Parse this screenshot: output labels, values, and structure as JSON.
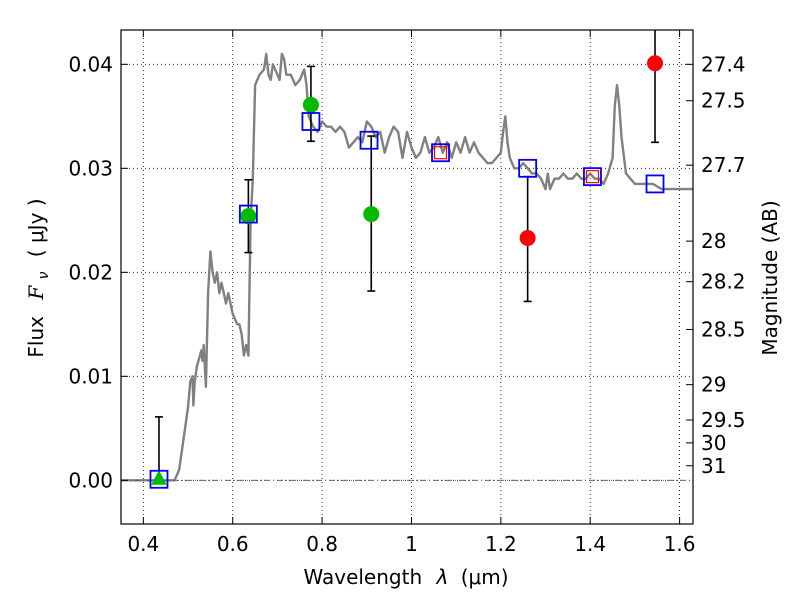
{
  "chart_data": {
    "type": "scatter",
    "xlabel_text": "Wavelength",
    "xlabel_lambda": "λ",
    "xlabel_unit": "(μm)",
    "ylabel_text": "Flux",
    "ylabel_symbol": "F",
    "ylabel_sub": "ν",
    "ylabel_unit": "( μJy )",
    "y2label": "Magnitude (AB)",
    "xlim": [
      0.35,
      1.63
    ],
    "ylim": [
      -0.0042,
      0.0433
    ],
    "grid": true,
    "x_ticks": [
      0.4,
      0.6,
      0.8,
      1.0,
      1.2,
      1.4,
      1.6
    ],
    "x_tick_labels": [
      "0.4",
      "0.6",
      "0.8",
      "1",
      "1.2",
      "1.4",
      "1.6"
    ],
    "y_ticks": [
      0.0,
      0.01,
      0.02,
      0.03,
      0.04
    ],
    "y_tick_labels": [
      "0.00",
      "0.01",
      "0.02",
      "0.03",
      "0.04"
    ],
    "mag_ticks": [
      {
        "label": "27.4",
        "y": 0.04
      },
      {
        "label": "27.5",
        "y": 0.0365
      },
      {
        "label": "27.7",
        "y": 0.0303
      },
      {
        "label": "28",
        "y": 0.023
      },
      {
        "label": "28.2",
        "y": 0.0191
      },
      {
        "label": "28.5",
        "y": 0.0145
      },
      {
        "label": "29",
        "y": 0.0092
      },
      {
        "label": "29.5",
        "y": 0.0058
      },
      {
        "label": "30",
        "y": 0.0036
      },
      {
        "label": "31",
        "y": 0.0014
      }
    ],
    "sed_model": {
      "color": "#808080",
      "points": [
        [
          0.35,
          0.0
        ],
        [
          0.45,
          0.0
        ],
        [
          0.47,
          0.0
        ],
        [
          0.48,
          0.001
        ],
        [
          0.49,
          0.004
        ],
        [
          0.5,
          0.007
        ],
        [
          0.505,
          0.0095
        ],
        [
          0.51,
          0.01
        ],
        [
          0.512,
          0.0072
        ],
        [
          0.515,
          0.0095
        ],
        [
          0.52,
          0.011
        ],
        [
          0.53,
          0.0125
        ],
        [
          0.532,
          0.0115
        ],
        [
          0.535,
          0.013
        ],
        [
          0.54,
          0.009
        ],
        [
          0.545,
          0.018
        ],
        [
          0.55,
          0.022
        ],
        [
          0.555,
          0.02
        ],
        [
          0.56,
          0.019
        ],
        [
          0.565,
          0.02
        ],
        [
          0.57,
          0.018
        ],
        [
          0.575,
          0.019
        ],
        [
          0.58,
          0.018
        ],
        [
          0.585,
          0.017
        ],
        [
          0.59,
          0.018
        ],
        [
          0.6,
          0.016
        ],
        [
          0.61,
          0.015
        ],
        [
          0.615,
          0.015
        ],
        [
          0.62,
          0.014
        ],
        [
          0.625,
          0.012
        ],
        [
          0.63,
          0.013
        ],
        [
          0.635,
          0.012
        ],
        [
          0.64,
          0.025
        ],
        [
          0.645,
          0.029
        ],
        [
          0.65,
          0.038
        ],
        [
          0.66,
          0.039
        ],
        [
          0.67,
          0.0395
        ],
        [
          0.675,
          0.041
        ],
        [
          0.68,
          0.039
        ],
        [
          0.685,
          0.0385
        ],
        [
          0.69,
          0.04
        ],
        [
          0.7,
          0.039
        ],
        [
          0.705,
          0.0385
        ],
        [
          0.71,
          0.041
        ],
        [
          0.715,
          0.0405
        ],
        [
          0.72,
          0.039
        ],
        [
          0.73,
          0.039
        ],
        [
          0.74,
          0.038
        ],
        [
          0.75,
          0.0385
        ],
        [
          0.76,
          0.0395
        ],
        [
          0.765,
          0.038
        ],
        [
          0.77,
          0.035
        ],
        [
          0.78,
          0.034
        ],
        [
          0.79,
          0.0335
        ],
        [
          0.8,
          0.0345
        ],
        [
          0.81,
          0.034
        ],
        [
          0.82,
          0.034
        ],
        [
          0.83,
          0.0335
        ],
        [
          0.84,
          0.034
        ],
        [
          0.85,
          0.0335
        ],
        [
          0.86,
          0.032
        ],
        [
          0.87,
          0.0325
        ],
        [
          0.88,
          0.033
        ],
        [
          0.89,
          0.0325
        ],
        [
          0.9,
          0.0345
        ],
        [
          0.91,
          0.034
        ],
        [
          0.92,
          0.033
        ],
        [
          0.93,
          0.0335
        ],
        [
          0.94,
          0.0315
        ],
        [
          0.95,
          0.033
        ],
        [
          0.96,
          0.034
        ],
        [
          0.97,
          0.0335
        ],
        [
          0.98,
          0.031
        ],
        [
          0.99,
          0.0335
        ],
        [
          1.0,
          0.032
        ],
        [
          1.01,
          0.031
        ],
        [
          1.02,
          0.0315
        ],
        [
          1.03,
          0.033
        ],
        [
          1.04,
          0.0315
        ],
        [
          1.05,
          0.032
        ],
        [
          1.06,
          0.033
        ],
        [
          1.07,
          0.0315
        ],
        [
          1.08,
          0.0325
        ],
        [
          1.09,
          0.031
        ],
        [
          1.1,
          0.0325
        ],
        [
          1.11,
          0.0315
        ],
        [
          1.12,
          0.033
        ],
        [
          1.13,
          0.0315
        ],
        [
          1.14,
          0.0325
        ],
        [
          1.15,
          0.0315
        ],
        [
          1.16,
          0.031
        ],
        [
          1.17,
          0.0305
        ],
        [
          1.18,
          0.0305
        ],
        [
          1.19,
          0.031
        ],
        [
          1.2,
          0.0315
        ],
        [
          1.205,
          0.0335
        ],
        [
          1.21,
          0.035
        ],
        [
          1.215,
          0.0325
        ],
        [
          1.22,
          0.031
        ],
        [
          1.23,
          0.03
        ],
        [
          1.24,
          0.03
        ],
        [
          1.25,
          0.0305
        ],
        [
          1.26,
          0.03
        ],
        [
          1.27,
          0.0295
        ],
        [
          1.28,
          0.0295
        ],
        [
          1.29,
          0.029
        ],
        [
          1.3,
          0.028
        ],
        [
          1.305,
          0.0295
        ],
        [
          1.31,
          0.028
        ],
        [
          1.32,
          0.029
        ],
        [
          1.33,
          0.029
        ],
        [
          1.34,
          0.0295
        ],
        [
          1.35,
          0.029
        ],
        [
          1.36,
          0.029
        ],
        [
          1.37,
          0.0295
        ],
        [
          1.38,
          0.029
        ],
        [
          1.39,
          0.029
        ],
        [
          1.4,
          0.0295
        ],
        [
          1.41,
          0.029
        ],
        [
          1.42,
          0.029
        ],
        [
          1.43,
          0.0285
        ],
        [
          1.44,
          0.0295
        ],
        [
          1.45,
          0.031
        ],
        [
          1.455,
          0.036
        ],
        [
          1.46,
          0.038
        ],
        [
          1.465,
          0.036
        ],
        [
          1.47,
          0.033
        ],
        [
          1.48,
          0.0295
        ],
        [
          1.49,
          0.029
        ],
        [
          1.5,
          0.0285
        ],
        [
          1.51,
          0.0285
        ],
        [
          1.52,
          0.0285
        ],
        [
          1.53,
          0.0285
        ],
        [
          1.54,
          0.0285
        ],
        [
          1.56,
          0.028
        ],
        [
          1.58,
          0.028
        ],
        [
          1.6,
          0.028
        ],
        [
          1.63,
          0.028
        ]
      ]
    },
    "model_fluxes": [
      {
        "x": 0.435,
        "y": 0.0001,
        "edge": "#0000ff"
      },
      {
        "x": 0.635,
        "y": 0.0256,
        "edge": "#0000ff"
      },
      {
        "x": 0.775,
        "y": 0.0345,
        "edge": "#0000ff"
      },
      {
        "x": 0.905,
        "y": 0.0327,
        "edge": "#0000ff"
      },
      {
        "x": 1.065,
        "y": 0.0315,
        "edge": "#0000ff"
      },
      {
        "x": 1.26,
        "y": 0.03,
        "edge": "#0000ff"
      },
      {
        "x": 1.405,
        "y": 0.0292,
        "edge": "#0000ff"
      },
      {
        "x": 1.545,
        "y": 0.0285,
        "edge": "#0000ff"
      }
    ],
    "model_fluxes_red": [
      {
        "x": 1.065,
        "y": 0.0315,
        "edge": "#ff0000"
      },
      {
        "x": 1.405,
        "y": 0.0292,
        "edge": "#ff0000"
      }
    ],
    "observed": [
      {
        "x": 0.435,
        "y": 0.0001,
        "err_low": 0.0,
        "err_high": 0.0061,
        "color": "#00bb00",
        "marker": "triangle"
      },
      {
        "x": 0.635,
        "y": 0.0254,
        "err_low": 0.0219,
        "err_high": 0.0289,
        "color": "#00bb00",
        "marker": "circle"
      },
      {
        "x": 0.775,
        "y": 0.0361,
        "err_low": 0.0326,
        "err_high": 0.0398,
        "color": "#00bb00",
        "marker": "circle"
      },
      {
        "x": 0.91,
        "y": 0.0256,
        "err_low": 0.0182,
        "err_high": 0.0331,
        "color": "#00bb00",
        "marker": "circle"
      },
      {
        "x": 1.26,
        "y": 0.0233,
        "err_low": 0.0172,
        "err_high": 0.0292,
        "color": "#ff0000",
        "marker": "circle"
      },
      {
        "x": 1.545,
        "y": 0.0401,
        "err_low": 0.0325,
        "err_high": 0.0433,
        "color": "#ff0000",
        "marker": "circle"
      }
    ],
    "dashdot_y": 0.0
  }
}
